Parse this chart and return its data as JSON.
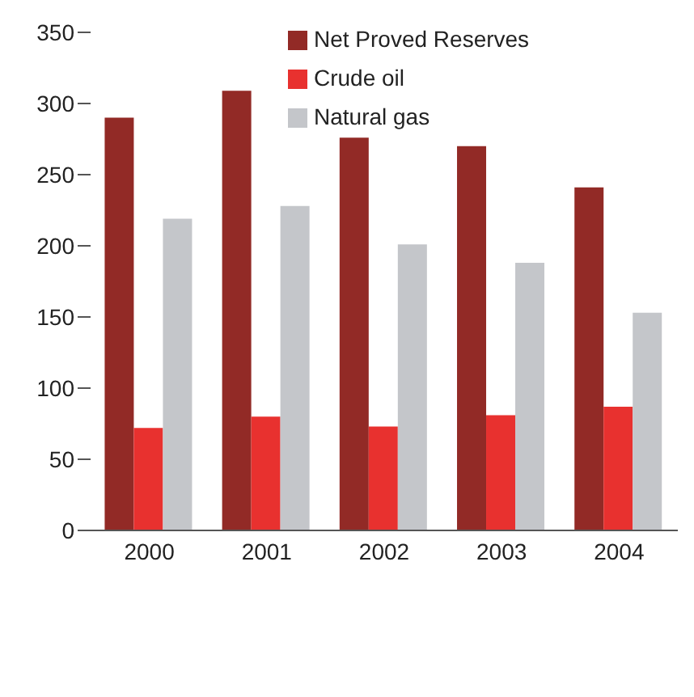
{
  "chart_data": {
    "type": "bar",
    "categories": [
      "2000",
      "2001",
      "2002",
      "2003",
      "2004"
    ],
    "series": [
      {
        "name": "Net Proved Reserves",
        "color": "#922a26",
        "values": [
          290,
          309,
          276,
          270,
          241
        ]
      },
      {
        "name": "Crude oil",
        "color": "#e8312f",
        "values": [
          72,
          80,
          73,
          81,
          87
        ]
      },
      {
        "name": "Natural gas",
        "color": "#c4c6ca",
        "values": [
          219,
          228,
          201,
          188,
          153
        ]
      }
    ],
    "ylim": [
      0,
      350
    ],
    "yticks": [
      0,
      50,
      100,
      150,
      200,
      250,
      300,
      350
    ],
    "grid": false,
    "legend": "top right"
  }
}
